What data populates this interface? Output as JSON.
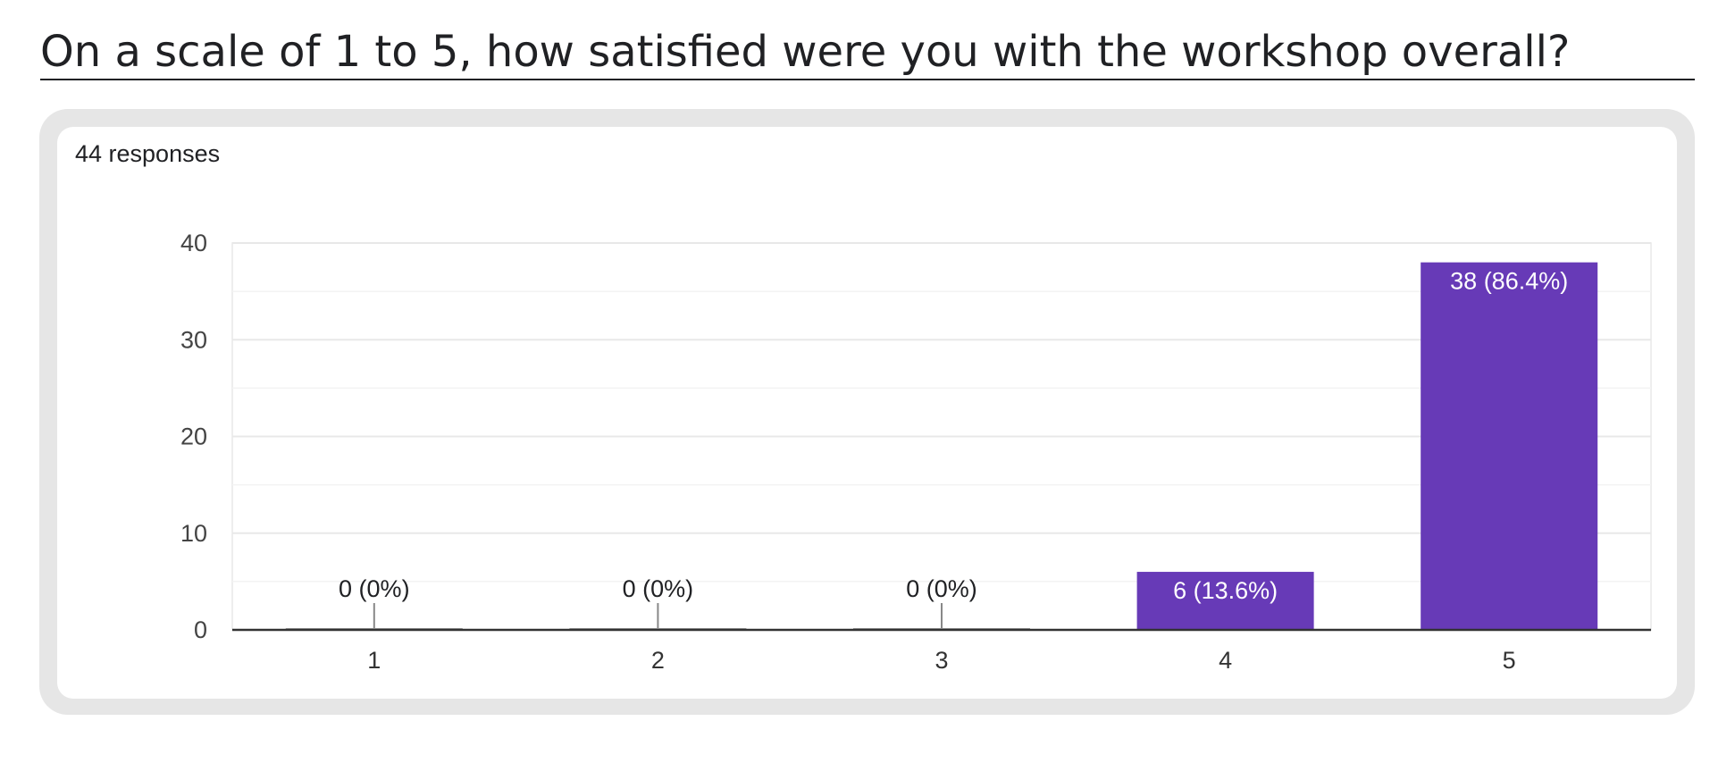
{
  "question": {
    "title": "On a scale of 1 to 5, how satisfied were you with the workshop overall?"
  },
  "summary": {
    "responses_label": "44 responses"
  },
  "colors": {
    "bar": "#673ab7",
    "axis": "#333333",
    "gridline": "#e8e8e8",
    "minor_gridline": "#f3f3f3",
    "text": "#202124",
    "label_inside": "#ffffff"
  },
  "chart_data": {
    "type": "bar",
    "categories": [
      "1",
      "2",
      "3",
      "4",
      "5"
    ],
    "values": [
      0,
      0,
      0,
      6,
      38
    ],
    "data_labels": [
      "0 (0%)",
      "0 (0%)",
      "0 (0%)",
      "6 (13.6%)",
      "38 (86.4%)"
    ],
    "ylim": [
      0,
      40
    ],
    "yticks": [
      0,
      10,
      20,
      30,
      40
    ],
    "grid": true,
    "legend": "none"
  }
}
